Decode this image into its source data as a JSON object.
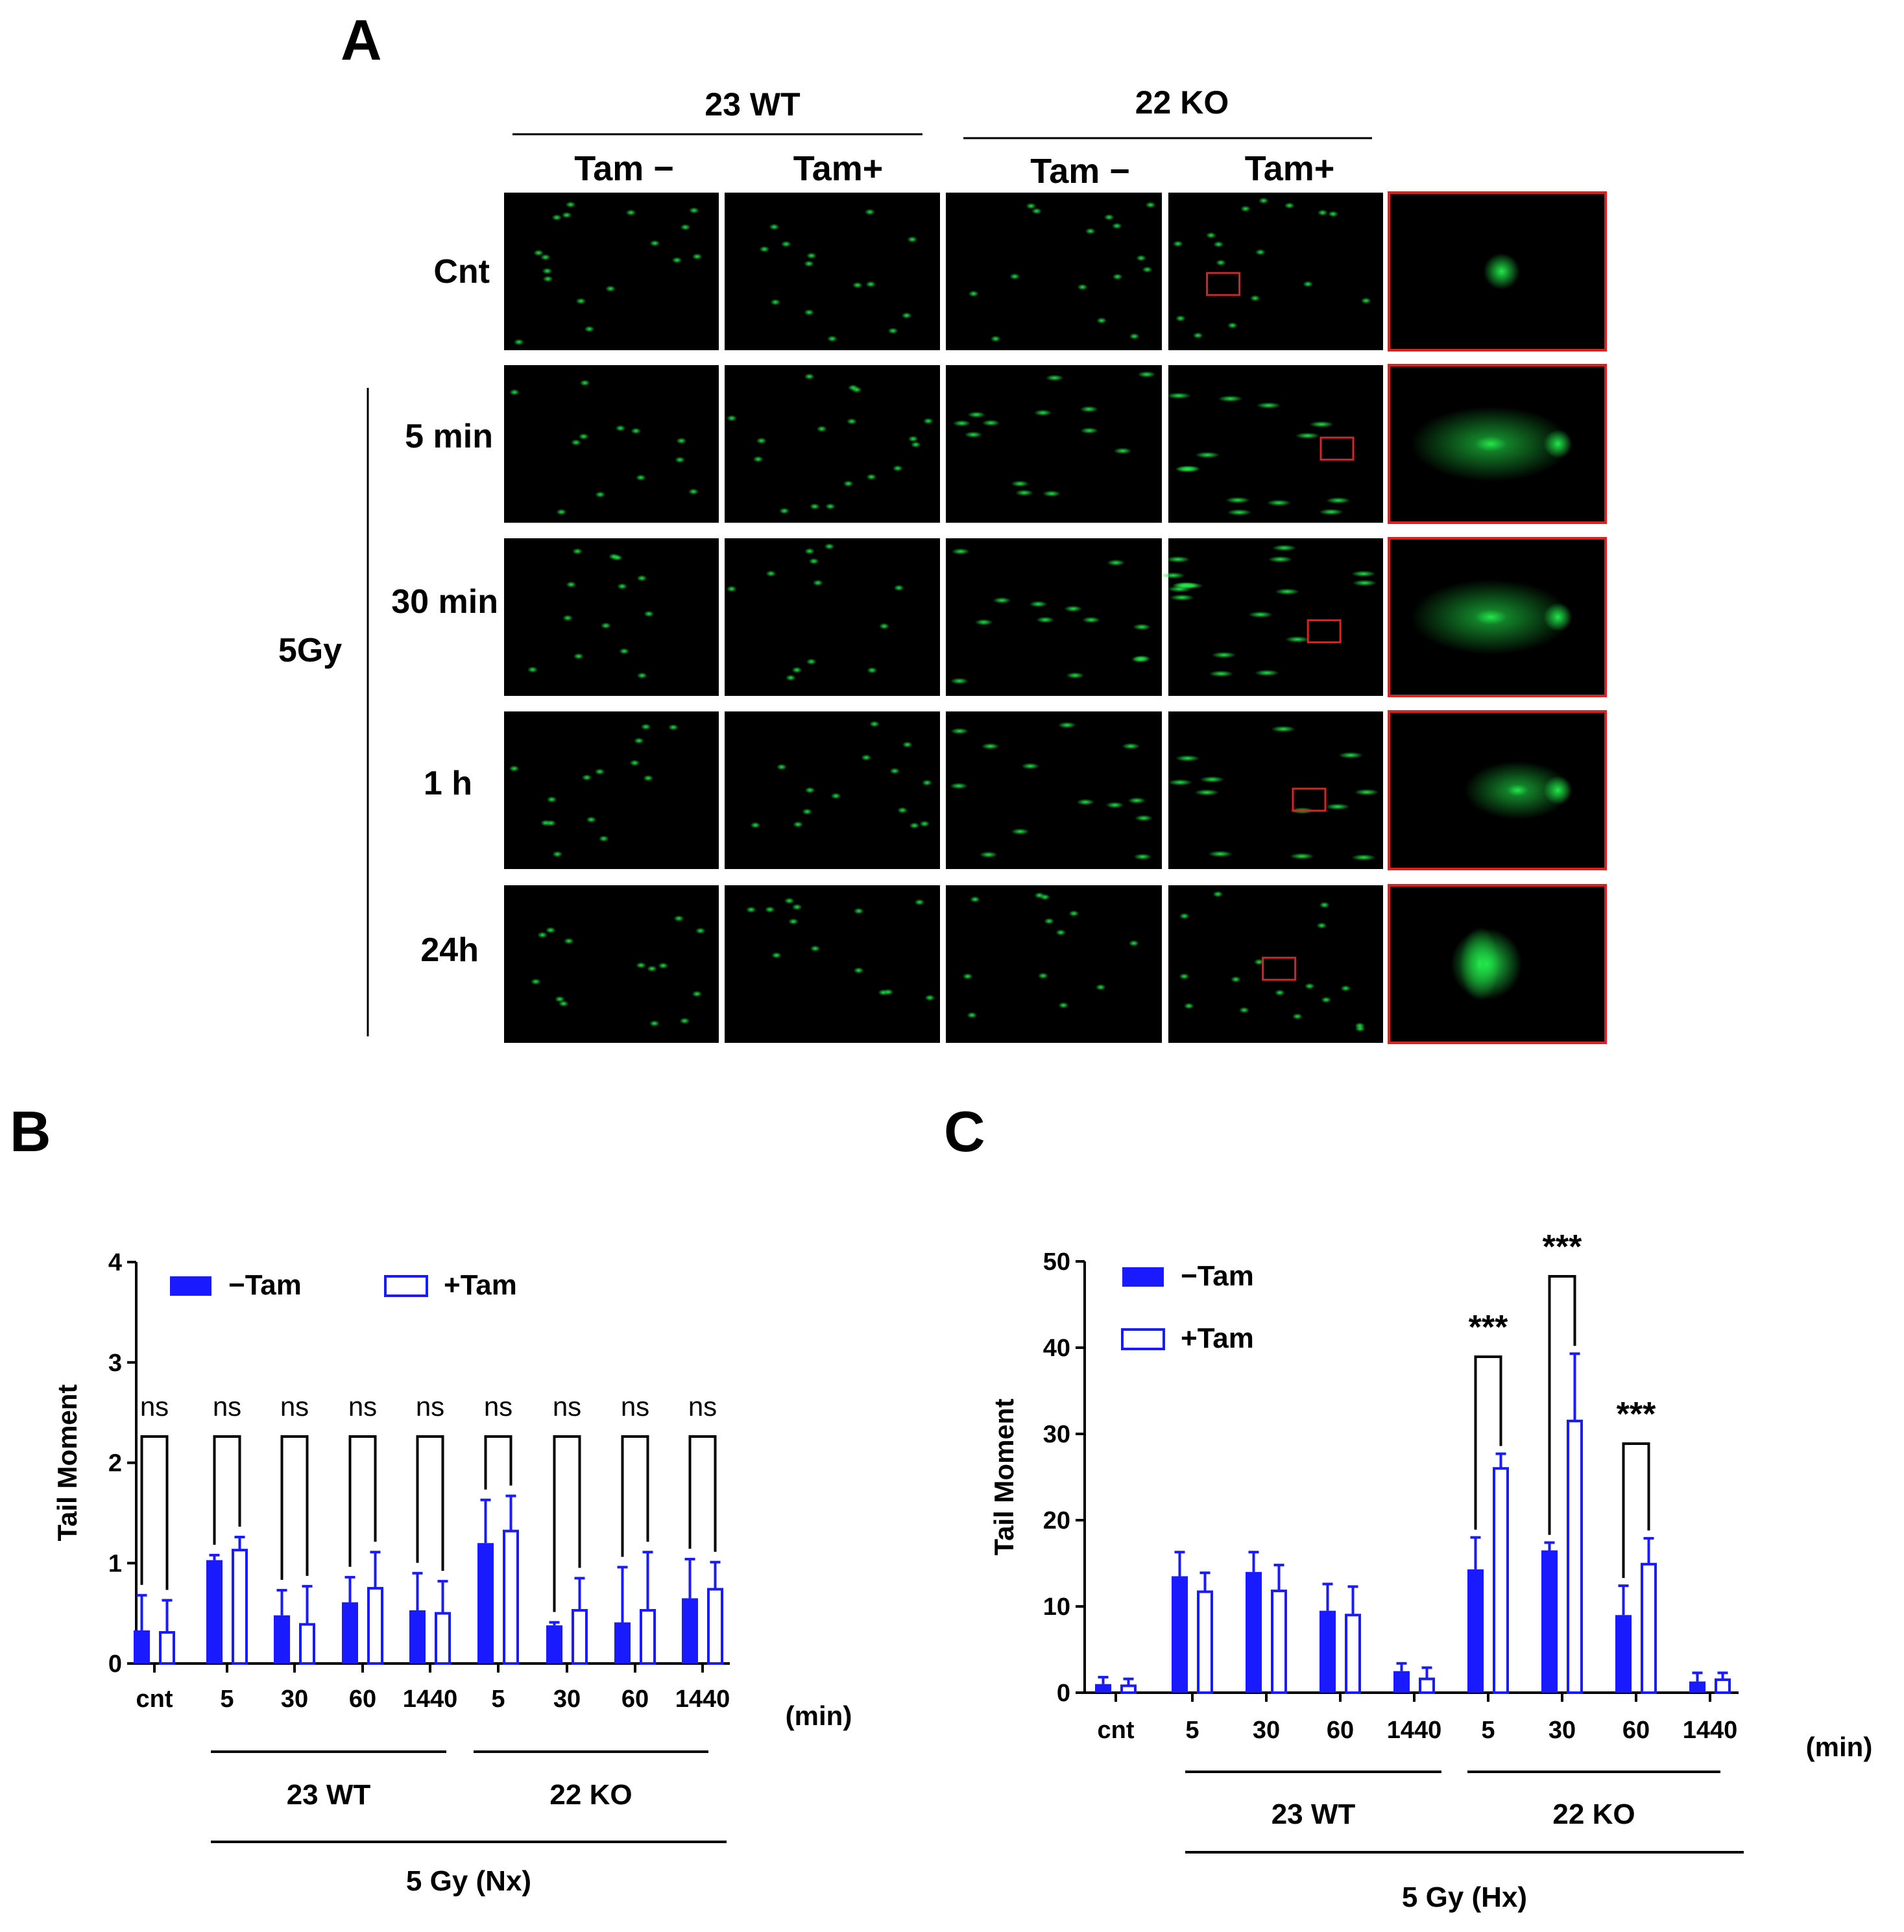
{
  "panel_labels": {
    "a": "A",
    "b": "B",
    "c": "C"
  },
  "comet_assay": {
    "group_headers": [
      "23 WT",
      "22 KO"
    ],
    "column_headers": [
      "Tam −",
      "Tam+",
      "Tam −",
      "Tam+"
    ],
    "row_labels": [
      "Cnt",
      "5 min",
      "30 min",
      "1 h",
      "24h"
    ],
    "treatment_label": "5Gy",
    "background_color": "#000000",
    "comet_color": "#22e84a",
    "highlight_box_color": "#e02020"
  },
  "chart_data": [
    {
      "type": "bar",
      "panel": "B",
      "ylabel": "Tail Moment",
      "ylim": [
        0,
        4
      ],
      "yticks": [
        "0",
        "1",
        "2",
        "3",
        "4"
      ],
      "categories": [
        "cnt",
        "5",
        "30",
        "60",
        "1440",
        "5",
        "30",
        "60",
        "1440"
      ],
      "xunit": "(min)",
      "group_labels": [
        "23 WT",
        "22 KO"
      ],
      "treatment_label": "5 Gy (Nx)",
      "legend": [
        "−Tam",
        "+Tam"
      ],
      "series": [
        {
          "name": "−Tam",
          "values": [
            0.33,
            1.03,
            0.48,
            0.61,
            0.53,
            1.2,
            0.38,
            0.41,
            0.65
          ],
          "errors": [
            0.35,
            0.05,
            0.25,
            0.25,
            0.37,
            0.43,
            0.03,
            0.55,
            0.39
          ]
        },
        {
          "name": "+Tam",
          "values": [
            0.31,
            1.13,
            0.39,
            0.75,
            0.5,
            1.32,
            0.53,
            0.53,
            0.74
          ],
          "errors": [
            0.32,
            0.13,
            0.38,
            0.36,
            0.32,
            0.35,
            0.32,
            0.58,
            0.27
          ]
        }
      ],
      "significance": [
        "ns",
        "ns",
        "ns",
        "ns",
        "ns",
        "ns",
        "ns",
        "ns",
        "ns"
      ],
      "colors": {
        "bar": "#1a1aff",
        "axis": "#000000"
      }
    },
    {
      "type": "bar",
      "panel": "C",
      "ylabel": "Tail Moment",
      "ylim": [
        0,
        50
      ],
      "yticks": [
        "0",
        "10",
        "20",
        "30",
        "40",
        "50"
      ],
      "categories": [
        "cnt",
        "5",
        "30",
        "60",
        "1440",
        "5",
        "30",
        "60",
        "1440"
      ],
      "xunit": "(min)",
      "group_labels": [
        "23 WT",
        "22 KO"
      ],
      "treatment_label": "5 Gy (Hx)",
      "legend": [
        "−Tam",
        "+Tam"
      ],
      "series": [
        {
          "name": "−Tam",
          "values": [
            1.0,
            13.5,
            14.0,
            9.5,
            2.5,
            14.3,
            16.5,
            9.0,
            1.3
          ],
          "errors": [
            0.8,
            2.8,
            2.3,
            3.1,
            0.9,
            3.7,
            0.9,
            3.4,
            1.0
          ]
        },
        {
          "name": "+Tam",
          "values": [
            0.8,
            11.7,
            11.8,
            9.0,
            1.6,
            26.0,
            31.5,
            14.9,
            1.5
          ],
          "errors": [
            0.8,
            2.2,
            3.0,
            3.3,
            1.3,
            1.7,
            7.8,
            3.0,
            0.8
          ]
        }
      ],
      "significance": [
        "",
        "",
        "",
        "",
        "",
        "***",
        "***",
        "***",
        ""
      ],
      "colors": {
        "bar": "#1a1aff",
        "axis": "#000000"
      }
    }
  ]
}
